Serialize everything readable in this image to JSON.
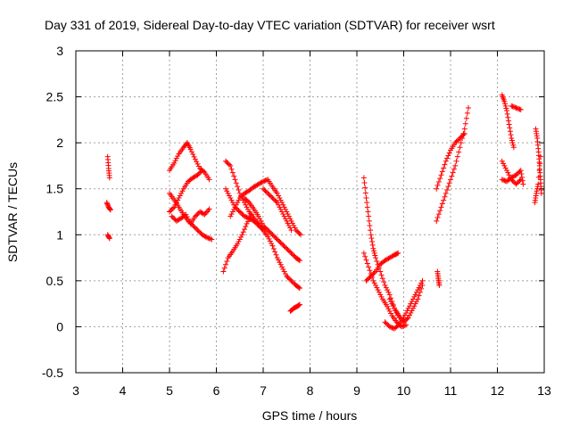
{
  "chart_data": {
    "type": "scatter",
    "title": "Day 331 of 2019, Sidereal Day-to-day VTEC variation (SDTVAR) for receiver wsrt",
    "xlabel": "GPS time / hours",
    "ylabel": "SDTVAR / TECUs",
    "xlim": [
      3,
      13
    ],
    "ylim": [
      -0.5,
      3
    ],
    "xticks": [
      "3",
      "4",
      "5",
      "6",
      "7",
      "8",
      "9",
      "10",
      "11",
      "12",
      "13"
    ],
    "yticks": [
      "-0.5",
      "0",
      "0.5",
      "1",
      "1.5",
      "2",
      "2.5",
      "3"
    ],
    "grid": true,
    "marker": "plus",
    "marker_color": "#ff0000",
    "series": [
      {
        "name": "SDTVAR",
        "segments": [
          [
            [
              3.68,
              1.85
            ],
            [
              3.7,
              1.72
            ],
            [
              3.72,
              1.62
            ]
          ],
          [
            [
              3.66,
              1.35
            ],
            [
              3.7,
              1.3
            ],
            [
              3.74,
              1.27
            ]
          ],
          [
            [
              3.68,
              1.0
            ],
            [
              3.72,
              0.96
            ]
          ],
          [
            [
              5.0,
              1.7
            ],
            [
              5.1,
              1.78
            ],
            [
              5.2,
              1.88
            ],
            [
              5.3,
              1.95
            ],
            [
              5.38,
              2.0
            ],
            [
              5.45,
              1.93
            ],
            [
              5.55,
              1.82
            ],
            [
              5.65,
              1.72
            ],
            [
              5.75,
              1.68
            ],
            [
              5.85,
              1.6
            ]
          ],
          [
            [
              5.0,
              1.45
            ],
            [
              5.1,
              1.38
            ],
            [
              5.2,
              1.3
            ],
            [
              5.3,
              1.22
            ],
            [
              5.4,
              1.15
            ],
            [
              5.5,
              1.1
            ],
            [
              5.6,
              1.05
            ],
            [
              5.7,
              1.0
            ],
            [
              5.8,
              0.97
            ],
            [
              5.9,
              0.95
            ]
          ],
          [
            [
              5.0,
              1.25
            ],
            [
              5.1,
              1.3
            ],
            [
              5.2,
              1.4
            ],
            [
              5.3,
              1.5
            ],
            [
              5.4,
              1.58
            ],
            [
              5.5,
              1.62
            ],
            [
              5.6,
              1.65
            ],
            [
              5.7,
              1.7
            ]
          ],
          [
            [
              5.05,
              1.2
            ],
            [
              5.15,
              1.15
            ],
            [
              5.25,
              1.18
            ],
            [
              5.35,
              1.22
            ],
            [
              5.45,
              1.12
            ],
            [
              5.55,
              1.2
            ],
            [
              5.65,
              1.25
            ],
            [
              5.75,
              1.22
            ],
            [
              5.85,
              1.28
            ]
          ],
          [
            [
              6.15,
              0.6
            ],
            [
              6.25,
              0.75
            ],
            [
              6.35,
              0.82
            ],
            [
              6.45,
              0.9
            ],
            [
              6.55,
              1.0
            ],
            [
              6.65,
              1.12
            ],
            [
              6.75,
              1.22
            ]
          ],
          [
            [
              6.2,
              1.8
            ],
            [
              6.3,
              1.75
            ],
            [
              6.4,
              1.6
            ],
            [
              6.5,
              1.45
            ],
            [
              6.6,
              1.35
            ],
            [
              6.7,
              1.25
            ],
            [
              6.8,
              1.18
            ],
            [
              6.9,
              1.12
            ],
            [
              7.0,
              1.05
            ],
            [
              7.1,
              0.98
            ],
            [
              7.2,
              0.88
            ],
            [
              7.3,
              0.75
            ],
            [
              7.4,
              0.65
            ],
            [
              7.5,
              0.55
            ],
            [
              7.6,
              0.5
            ],
            [
              7.7,
              0.45
            ],
            [
              7.78,
              0.42
            ]
          ],
          [
            [
              6.2,
              1.5
            ],
            [
              6.3,
              1.4
            ],
            [
              6.4,
              1.3
            ],
            [
              6.5,
              1.25
            ],
            [
              6.6,
              1.2
            ],
            [
              6.7,
              1.18
            ],
            [
              6.8,
              1.15
            ],
            [
              6.9,
              1.1
            ],
            [
              7.0,
              1.05
            ]
          ],
          [
            [
              6.3,
              1.2
            ],
            [
              6.4,
              1.3
            ],
            [
              6.5,
              1.4
            ],
            [
              6.6,
              1.45
            ],
            [
              6.7,
              1.48
            ],
            [
              6.8,
              1.52
            ],
            [
              6.9,
              1.55
            ],
            [
              7.0,
              1.58
            ],
            [
              7.1,
              1.6
            ],
            [
              7.2,
              1.52
            ],
            [
              7.3,
              1.45
            ],
            [
              7.4,
              1.35
            ],
            [
              7.5,
              1.25
            ],
            [
              7.6,
              1.15
            ],
            [
              7.7,
              1.05
            ],
            [
              7.8,
              1.0
            ]
          ],
          [
            [
              6.6,
              1.4
            ],
            [
              6.7,
              1.35
            ],
            [
              6.8,
              1.28
            ],
            [
              6.9,
              1.2
            ],
            [
              7.0,
              1.1
            ],
            [
              7.1,
              1.05
            ],
            [
              7.2,
              1.0
            ],
            [
              7.3,
              0.95
            ],
            [
              7.4,
              0.9
            ],
            [
              7.5,
              0.85
            ],
            [
              7.6,
              0.8
            ],
            [
              7.7,
              0.75
            ],
            [
              7.78,
              0.72
            ]
          ],
          [
            [
              7.0,
              1.5
            ],
            [
              7.1,
              1.45
            ],
            [
              7.2,
              1.4
            ],
            [
              7.3,
              1.35
            ],
            [
              7.4,
              1.25
            ],
            [
              7.5,
              1.15
            ],
            [
              7.6,
              1.05
            ]
          ],
          [
            [
              7.58,
              0.17
            ],
            [
              7.65,
              0.2
            ],
            [
              7.72,
              0.22
            ],
            [
              7.78,
              0.24
            ]
          ],
          [
            [
              9.15,
              1.62
            ],
            [
              9.2,
              1.4
            ],
            [
              9.25,
              1.2
            ],
            [
              9.3,
              1.0
            ],
            [
              9.35,
              0.85
            ],
            [
              9.4,
              0.75
            ],
            [
              9.5,
              0.6
            ],
            [
              9.6,
              0.45
            ],
            [
              9.7,
              0.35
            ],
            [
              9.8,
              0.2
            ],
            [
              9.9,
              0.1
            ]
          ],
          [
            [
              9.15,
              0.8
            ],
            [
              9.25,
              0.65
            ],
            [
              9.35,
              0.5
            ],
            [
              9.45,
              0.4
            ],
            [
              9.55,
              0.3
            ],
            [
              9.65,
              0.22
            ],
            [
              9.75,
              0.12
            ],
            [
              9.85,
              0.05
            ],
            [
              9.95,
              0.0
            ],
            [
              10.05,
              0.02
            ]
          ],
          [
            [
              9.2,
              0.5
            ],
            [
              9.3,
              0.55
            ],
            [
              9.4,
              0.6
            ],
            [
              9.5,
              0.68
            ],
            [
              9.6,
              0.72
            ],
            [
              9.7,
              0.75
            ],
            [
              9.8,
              0.78
            ],
            [
              9.88,
              0.8
            ]
          ],
          [
            [
              9.6,
              0.05
            ],
            [
              9.7,
              0.0
            ],
            [
              9.8,
              -0.02
            ],
            [
              9.9,
              0.02
            ],
            [
              10.0,
              0.1
            ],
            [
              10.1,
              0.2
            ],
            [
              10.2,
              0.3
            ],
            [
              10.3,
              0.4
            ],
            [
              10.4,
              0.5
            ]
          ],
          [
            [
              9.7,
              0.3
            ],
            [
              9.8,
              0.2
            ],
            [
              9.9,
              0.12
            ],
            [
              10.0,
              0.05
            ],
            [
              10.1,
              0.1
            ],
            [
              10.2,
              0.2
            ],
            [
              10.3,
              0.3
            ],
            [
              10.4,
              0.45
            ]
          ],
          [
            [
              10.72,
              0.6
            ],
            [
              10.74,
              0.52
            ],
            [
              10.76,
              0.45
            ]
          ],
          [
            [
              10.7,
              1.15
            ],
            [
              10.8,
              1.3
            ],
            [
              10.9,
              1.45
            ],
            [
              11.0,
              1.6
            ],
            [
              11.1,
              1.75
            ],
            [
              11.2,
              1.95
            ],
            [
              11.3,
              2.15
            ],
            [
              11.38,
              2.38
            ]
          ],
          [
            [
              10.7,
              1.5
            ],
            [
              10.8,
              1.65
            ],
            [
              10.9,
              1.8
            ],
            [
              11.0,
              1.92
            ],
            [
              11.1,
              2.0
            ],
            [
              11.2,
              2.05
            ],
            [
              11.3,
              2.1
            ]
          ],
          [
            [
              12.1,
              2.52
            ],
            [
              12.15,
              2.45
            ],
            [
              12.2,
              2.35
            ],
            [
              12.25,
              2.2
            ],
            [
              12.3,
              2.05
            ],
            [
              12.35,
              1.95
            ]
          ],
          [
            [
              12.3,
              2.4
            ],
            [
              12.4,
              2.38
            ],
            [
              12.5,
              2.36
            ]
          ],
          [
            [
              12.1,
              1.8
            ],
            [
              12.2,
              1.7
            ],
            [
              12.3,
              1.6
            ],
            [
              12.4,
              1.55
            ],
            [
              12.5,
              1.6
            ]
          ],
          [
            [
              12.1,
              1.6
            ],
            [
              12.2,
              1.58
            ],
            [
              12.3,
              1.62
            ],
            [
              12.4,
              1.65
            ],
            [
              12.5,
              1.7
            ],
            [
              12.55,
              1.55
            ]
          ],
          [
            [
              12.82,
              2.15
            ],
            [
              12.85,
              2.05
            ],
            [
              12.88,
              1.9
            ],
            [
              12.9,
              1.75
            ],
            [
              12.92,
              1.6
            ],
            [
              12.94,
              1.45
            ]
          ],
          [
            [
              12.8,
              1.35
            ],
            [
              12.83,
              1.45
            ],
            [
              12.87,
              1.55
            ],
            [
              12.92,
              1.85
            ]
          ]
        ]
      }
    ]
  }
}
